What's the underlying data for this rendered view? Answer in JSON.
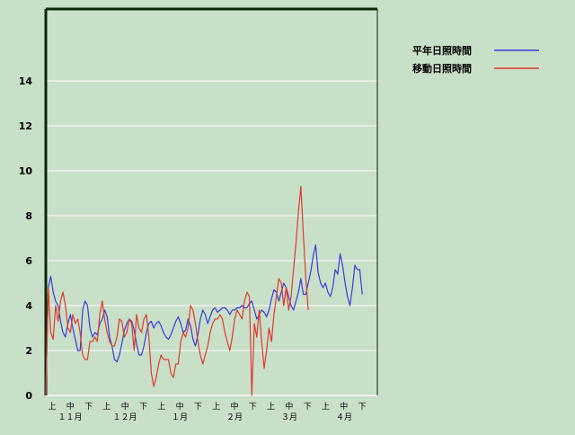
{
  "colors": {
    "background": "#c8dfc8",
    "grid": "#ffffff",
    "axis": "#0a2a0a",
    "normal": "#3a3adc",
    "moving": "#e03a2a"
  },
  "chart_data": {
    "type": "line",
    "title": "",
    "xlabel": "",
    "ylabel": "",
    "ylim": [
      0,
      14
    ],
    "yticks": [
      "0",
      "2",
      "4",
      "6",
      "8",
      "10",
      "12",
      "14"
    ],
    "grid": true,
    "legend_position": "top-right",
    "period_labels": [
      "上",
      "中",
      "下",
      "上",
      "中",
      "下",
      "上",
      "中",
      "下",
      "上",
      "中",
      "下",
      "上",
      "中",
      "下",
      "上",
      "中",
      "下"
    ],
    "month_labels": [
      "１１月",
      "１２月",
      "１月",
      "２月",
      "３月",
      "４月"
    ],
    "series": [
      {
        "name": "平年日照時間",
        "color": "#3a3adc",
        "values": [
          0.0,
          4.8,
          5.3,
          4.6,
          4.2,
          4.0,
          3.3,
          2.8,
          2.6,
          3.2,
          3.6,
          3.0,
          2.5,
          2.0,
          2.0,
          3.8,
          4.2,
          4.0,
          3.0,
          2.6,
          2.8,
          2.7,
          3.2,
          3.4,
          3.8,
          3.5,
          2.6,
          2.2,
          1.6,
          1.5,
          1.8,
          2.3,
          2.9,
          3.2,
          3.4,
          3.3,
          2.9,
          2.3,
          1.8,
          1.8,
          2.2,
          2.8,
          3.2,
          3.3,
          3.0,
          3.2,
          3.3,
          3.1,
          2.8,
          2.6,
          2.5,
          2.7,
          3.0,
          3.3,
          3.5,
          3.2,
          2.8,
          2.9,
          3.4,
          3.1,
          2.5,
          2.2,
          2.7,
          3.4,
          3.8,
          3.6,
          3.2,
          3.5,
          3.8,
          3.9,
          3.7,
          3.8,
          3.9,
          3.9,
          3.8,
          3.6,
          3.8,
          3.8,
          3.9,
          3.9,
          4.0,
          3.9,
          3.9,
          4.1,
          4.2,
          3.8,
          3.4,
          3.6,
          3.8,
          3.7,
          3.5,
          3.8,
          4.3,
          4.7,
          4.6,
          4.2,
          4.6,
          5.0,
          4.8,
          4.4,
          4.0,
          3.8,
          4.2,
          4.6,
          5.2,
          4.5,
          4.5,
          5.0,
          5.5,
          6.2,
          6.7,
          5.5,
          5.0,
          4.8,
          5.0,
          4.6,
          4.4,
          4.8,
          5.6,
          5.4,
          6.3,
          5.8,
          5.0,
          4.4,
          4.0,
          4.8,
          5.8,
          5.6,
          5.6,
          4.5
        ]
      },
      {
        "name": "移動日照時間",
        "color": "#e03a2a",
        "values": [
          0.0,
          4.8,
          2.8,
          2.5,
          4.0,
          3.3,
          4.2,
          4.6,
          4.0,
          3.0,
          2.8,
          3.6,
          3.2,
          3.4,
          2.8,
          1.8,
          1.6,
          1.6,
          2.4,
          2.4,
          2.6,
          2.4,
          3.6,
          4.2,
          3.4,
          2.8,
          2.4,
          2.2,
          2.2,
          2.6,
          3.4,
          3.3,
          2.6,
          2.8,
          3.4,
          3.2,
          2.0,
          3.6,
          3.0,
          2.8,
          3.4,
          3.6,
          2.6,
          1.0,
          0.4,
          0.8,
          1.4,
          1.8,
          1.6,
          1.6,
          1.6,
          1.0,
          0.8,
          1.4,
          1.4,
          2.4,
          2.8,
          2.6,
          3.0,
          4.0,
          3.8,
          3.2,
          2.4,
          1.8,
          1.4,
          1.8,
          2.2,
          2.8,
          3.2,
          3.4,
          3.4,
          3.6,
          3.4,
          2.8,
          2.4,
          2.0,
          2.6,
          3.4,
          3.8,
          3.6,
          3.4,
          4.2,
          4.6,
          4.4,
          0.0,
          3.2,
          2.6,
          3.8,
          2.4,
          1.2,
          2.0,
          3.0,
          2.4,
          3.6,
          4.4,
          5.2,
          5.0,
          4.0,
          4.8,
          3.8,
          4.4,
          5.6,
          6.8,
          8.2,
          9.3,
          7.2,
          5.2,
          3.8
        ]
      }
    ]
  }
}
